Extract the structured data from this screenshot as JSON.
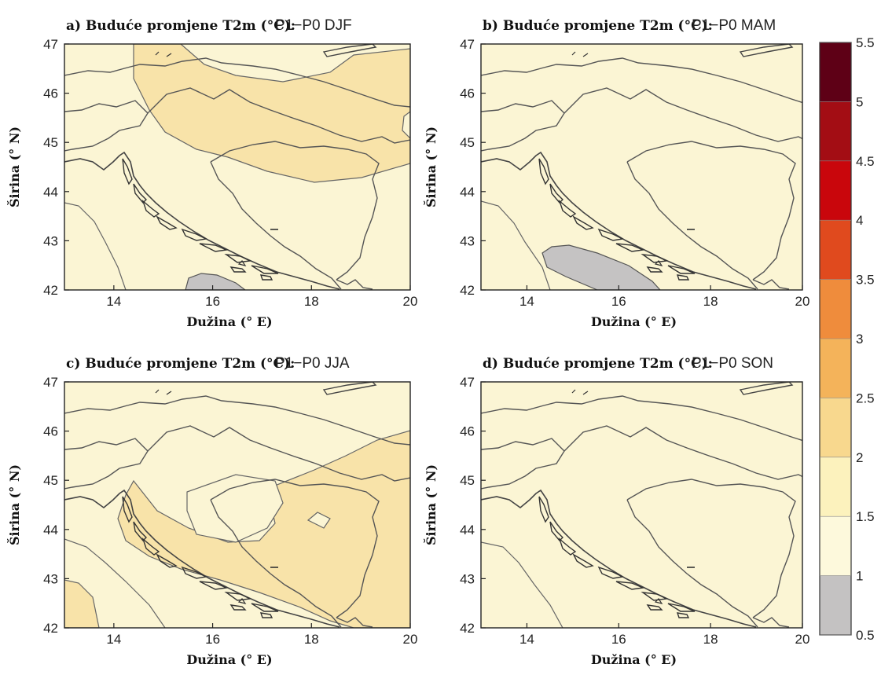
{
  "panels": [
    {
      "title_prefix": "a) Buduće promjene T2m (°C):",
      "title_suffix": "P1−P0 DJF",
      "xlabel": "Dužina (° E)",
      "ylabel": "Širina (° N)",
      "xticks": [
        "14",
        "16",
        "18",
        "20"
      ],
      "yticks": [
        "47",
        "46",
        "45",
        "44",
        "43",
        "42"
      ]
    },
    {
      "title_prefix": "b) Buduće promjene T2m (°C):",
      "title_suffix": "P1−P0 MAM",
      "xlabel": "Dužina (° E)",
      "ylabel": "Širina (° N)",
      "xticks": [
        "14",
        "16",
        "18",
        "20"
      ],
      "yticks": [
        "47",
        "46",
        "45",
        "44",
        "43",
        "42"
      ]
    },
    {
      "title_prefix": "c) Buduće promjene T2m (°C):",
      "title_suffix": "P1−P0 JJA",
      "xlabel": "Dužina (° E)",
      "ylabel": "Širina (° N)",
      "xticks": [
        "14",
        "16",
        "18",
        "20"
      ],
      "yticks": [
        "47",
        "46",
        "45",
        "44",
        "43",
        "42"
      ]
    },
    {
      "title_prefix": "d) Buduće promjene T2m (°C):",
      "title_suffix": "P1−P0 SON",
      "xlabel": "Dužina (° E)",
      "ylabel": "Širina (° N)",
      "xticks": [
        "14",
        "16",
        "18",
        "20"
      ],
      "yticks": [
        "47",
        "46",
        "45",
        "44",
        "43",
        "42"
      ]
    }
  ],
  "map_extent": {
    "lon_range": [
      13,
      20
    ],
    "lat_range": [
      42,
      47
    ]
  },
  "colorbar": {
    "ticks": [
      "5.5",
      "5",
      "4.5",
      "4",
      "3.5",
      "3",
      "2.5",
      "2",
      "1.5",
      "1",
      "0.5"
    ],
    "bands": [
      {
        "from": 5.0,
        "to": 5.5,
        "color": "#5e0016"
      },
      {
        "from": 4.5,
        "to": 5.0,
        "color": "#a30d14"
      },
      {
        "from": 4.0,
        "to": 4.5,
        "color": "#c9060c"
      },
      {
        "from": 3.5,
        "to": 4.0,
        "color": "#e04a1e"
      },
      {
        "from": 3.0,
        "to": 3.5,
        "color": "#ef8c3c"
      },
      {
        "from": 2.5,
        "to": 3.0,
        "color": "#f4b35a"
      },
      {
        "from": 2.0,
        "to": 2.5,
        "color": "#f8d88e"
      },
      {
        "from": 1.5,
        "to": 2.0,
        "color": "#fcf2bd"
      },
      {
        "from": 1.0,
        "to": 1.5,
        "color": "#fdf9dc"
      },
      {
        "from": 0.5,
        "to": 1.0,
        "color": "#c4c2c2"
      }
    ]
  },
  "colors": {
    "light": "#fbf5d4",
    "mid": "#f8e3a9",
    "gray": "#c5c3c3",
    "border": "#555555"
  }
}
